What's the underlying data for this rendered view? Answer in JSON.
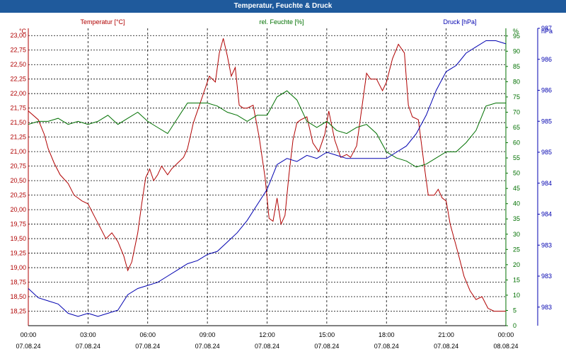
{
  "chart_data": {
    "type": "line",
    "title": "Temperatur, Feuchte & Druck",
    "colors": {
      "temperature": "#b00000",
      "humidity": "#007000",
      "pressure": "#0000b0",
      "title_bar": "#1f5a9c",
      "grid": "#000000"
    },
    "x_ticks": [
      {
        "time": "00:00",
        "date": "07.08.24",
        "hour": 0
      },
      {
        "time": "03:00",
        "date": "07.08.24",
        "hour": 3
      },
      {
        "time": "06:00",
        "date": "07.08.24",
        "hour": 6
      },
      {
        "time": "09:00",
        "date": "07.08.24",
        "hour": 9
      },
      {
        "time": "12:00",
        "date": "07.08.24",
        "hour": 12
      },
      {
        "time": "15:00",
        "date": "07.08.24",
        "hour": 15
      },
      {
        "time": "18:00",
        "date": "07.08.24",
        "hour": 18
      },
      {
        "time": "21:00",
        "date": "07.08.24",
        "hour": 21
      },
      {
        "time": "00:00",
        "date": "08.08.24",
        "hour": 24
      }
    ],
    "xlim": [
      0,
      24
    ],
    "axes": {
      "temperature": {
        "label": "Temperatur [°C]",
        "unit": "°C",
        "ylim": [
          18.0,
          23.125
        ],
        "ticks": [
          "18,25",
          "18,50",
          "18,75",
          "19,00",
          "19,25",
          "19,50",
          "19,75",
          "20,00",
          "20,25",
          "20,50",
          "20,75",
          "21,00",
          "21,25",
          "21,50",
          "21,75",
          "22,00",
          "22,25",
          "22,50",
          "22,75",
          "23,00"
        ],
        "tick_values": [
          18.25,
          18.5,
          18.75,
          19.0,
          19.25,
          19.5,
          19.75,
          20.0,
          20.25,
          20.5,
          20.75,
          21.0,
          21.25,
          21.5,
          21.75,
          22.0,
          22.25,
          22.5,
          22.75,
          23.0
        ]
      },
      "humidity": {
        "label": "rel. Feuchte [%]",
        "unit": "%",
        "ylim": [
          0,
          97.5
        ],
        "ticks": [
          "0",
          "5",
          "10",
          "15",
          "20",
          "25",
          "30",
          "35",
          "40",
          "45",
          "50",
          "55",
          "60",
          "65",
          "70",
          "75",
          "80",
          "85",
          "90",
          "95"
        ],
        "tick_values": [
          0,
          5,
          10,
          15,
          20,
          25,
          30,
          35,
          40,
          45,
          50,
          55,
          60,
          65,
          70,
          75,
          80,
          85,
          90,
          95
        ]
      },
      "pressure": {
        "label": "Druck [hPa]",
        "unit": "hPa",
        "ylim": [
          982.6,
          987.4
        ],
        "ticks": [
          "983",
          "983",
          "983",
          "984",
          "984",
          "985",
          "985",
          "986",
          "986",
          "987",
          "987"
        ],
        "tick_values": [
          982.9,
          983.4,
          983.9,
          984.4,
          984.9,
          985.4,
          985.9,
          986.4,
          986.9,
          987.4,
          987.9
        ]
      }
    },
    "series": [
      {
        "name": "Temperatur [°C]",
        "key": "temperature",
        "x": [
          0,
          0.5,
          0.8,
          1.0,
          1.3,
          1.6,
          2.0,
          2.3,
          2.7,
          3.0,
          3.3,
          3.6,
          3.9,
          4.2,
          4.5,
          4.8,
          5.0,
          5.2,
          5.5,
          5.7,
          5.9,
          6.1,
          6.3,
          6.5,
          6.7,
          7.0,
          7.2,
          7.5,
          7.8,
          8.0,
          8.3,
          8.6,
          8.9,
          9.1,
          9.4,
          9.6,
          9.8,
          10.0,
          10.2,
          10.4,
          10.6,
          10.8,
          11.0,
          11.3,
          11.6,
          11.9,
          12.1,
          12.3,
          12.5,
          12.7,
          12.9,
          13.1,
          13.3,
          13.5,
          13.7,
          14.0,
          14.3,
          14.6,
          14.9,
          15.1,
          15.4,
          15.7,
          16.0,
          16.2,
          16.5,
          16.8,
          17.0,
          17.2,
          17.5,
          17.8,
          18.0,
          18.3,
          18.6,
          18.9,
          19.1,
          19.3,
          19.6,
          19.9,
          20.1,
          20.4,
          20.6,
          20.8,
          21.0,
          21.2,
          21.4,
          21.6,
          21.9,
          22.2,
          22.5,
          22.8,
          23.1,
          23.4,
          23.7,
          24.0
        ],
        "values": [
          21.7,
          21.55,
          21.3,
          21.05,
          20.8,
          20.6,
          20.45,
          20.25,
          20.15,
          20.1,
          19.9,
          19.7,
          19.5,
          19.6,
          19.45,
          19.2,
          18.95,
          19.1,
          19.6,
          20.1,
          20.55,
          20.7,
          20.5,
          20.6,
          20.75,
          20.6,
          20.7,
          20.8,
          20.9,
          21.05,
          21.5,
          21.8,
          22.1,
          22.3,
          22.2,
          22.7,
          22.95,
          22.65,
          22.3,
          22.45,
          21.8,
          21.75,
          21.75,
          21.8,
          21.25,
          20.55,
          19.85,
          19.8,
          20.2,
          19.75,
          19.9,
          20.6,
          21.2,
          21.5,
          21.55,
          21.6,
          21.15,
          21.0,
          21.3,
          21.7,
          21.2,
          20.9,
          20.95,
          20.9,
          21.1,
          21.85,
          22.35,
          22.25,
          22.25,
          22.05,
          22.2,
          22.6,
          22.85,
          22.7,
          21.8,
          21.6,
          21.55,
          20.75,
          20.25,
          20.25,
          20.35,
          20.2,
          20.15,
          19.75,
          19.5,
          19.25,
          18.85,
          18.6,
          18.45,
          18.5,
          18.3,
          18.25,
          18.25,
          18.25
        ]
      },
      {
        "name": "rel. Feuchte [%]",
        "key": "humidity",
        "x": [
          0,
          0.5,
          1.0,
          1.5,
          2.0,
          2.5,
          3.0,
          3.5,
          4.0,
          4.5,
          5.0,
          5.5,
          6.0,
          6.5,
          7.0,
          7.5,
          8.0,
          8.5,
          9.0,
          9.5,
          10.0,
          10.5,
          11.0,
          11.5,
          12.0,
          12.5,
          13.0,
          13.5,
          14.0,
          14.5,
          15.0,
          15.5,
          16.0,
          16.5,
          17.0,
          17.5,
          18.0,
          18.5,
          19.0,
          19.5,
          20.0,
          20.5,
          21.0,
          21.5,
          22.0,
          22.5,
          23.0,
          23.5,
          24.0
        ],
        "values": [
          66,
          67,
          67,
          68,
          66,
          67,
          66,
          67,
          69,
          66,
          68,
          70,
          67,
          65,
          63,
          68,
          73,
          73,
          73,
          72,
          70,
          69,
          67,
          69,
          69,
          75,
          77,
          74,
          67,
          65,
          67,
          64,
          63,
          65,
          66,
          63,
          57,
          55,
          54,
          52,
          53,
          55,
          57,
          57,
          60,
          64,
          72,
          73,
          73
        ]
      },
      {
        "name": "Druck [hPa]",
        "key": "pressure",
        "x": [
          0,
          0.5,
          1.0,
          1.5,
          2.0,
          2.5,
          3.0,
          3.5,
          4.0,
          4.5,
          5.0,
          5.5,
          6.0,
          6.5,
          7.0,
          7.5,
          8.0,
          8.5,
          9.0,
          9.5,
          10.0,
          10.5,
          11.0,
          11.5,
          12.0,
          12.5,
          13.0,
          13.5,
          14.0,
          14.5,
          15.0,
          15.5,
          16.0,
          16.5,
          17.0,
          17.5,
          18.0,
          18.5,
          19.0,
          19.5,
          20.0,
          20.5,
          21.0,
          21.5,
          22.0,
          22.5,
          23.0,
          23.5,
          24.0
        ],
        "values": [
          983.2,
          983.05,
          983.0,
          982.95,
          982.8,
          982.75,
          982.8,
          982.75,
          982.8,
          982.85,
          983.1,
          983.2,
          983.25,
          983.3,
          983.4,
          983.5,
          983.6,
          983.65,
          983.75,
          983.8,
          983.95,
          984.1,
          984.3,
          984.55,
          984.8,
          985.2,
          985.3,
          985.25,
          985.35,
          985.3,
          985.4,
          985.35,
          985.3,
          985.3,
          985.3,
          985.3,
          985.3,
          985.4,
          985.5,
          985.7,
          986.0,
          986.4,
          986.7,
          986.8,
          987.0,
          987.1,
          987.2,
          987.2,
          987.15
        ]
      }
    ]
  }
}
